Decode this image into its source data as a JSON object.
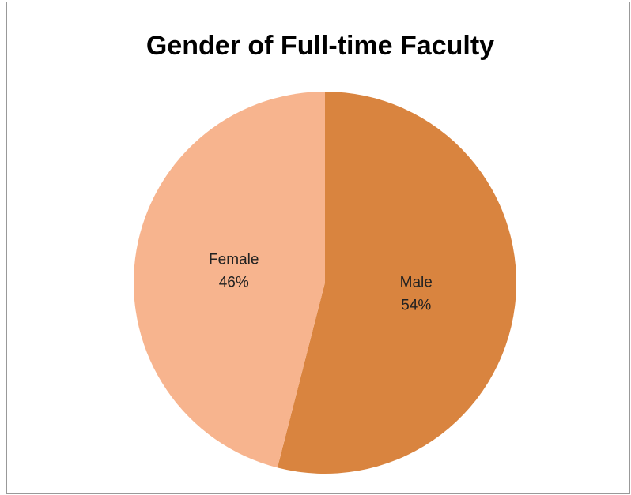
{
  "chart_data": {
    "type": "pie",
    "title": "Gender of Full-time Faculty",
    "categories": [
      "Male",
      "Female"
    ],
    "values": [
      54,
      46
    ],
    "value_labels": [
      "54%",
      "46%"
    ],
    "colors": [
      "#d9843f",
      "#f7b48e"
    ]
  }
}
